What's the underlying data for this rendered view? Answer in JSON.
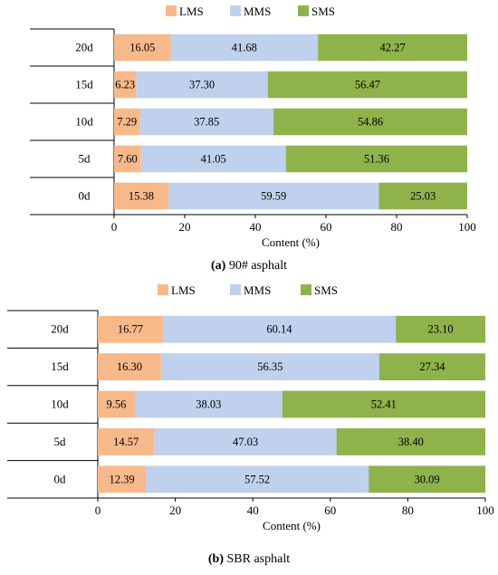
{
  "colors": {
    "LMS": "#f8b98a",
    "MMS": "#bfd1ec",
    "SMS": "#8fb24b"
  },
  "chart_data": [
    {
      "type": "bar",
      "orientation": "horizontal",
      "stacked": true,
      "categories": [
        "20d",
        "15d",
        "10d",
        "5d",
        "0d"
      ],
      "series": [
        {
          "name": "LMS",
          "values": [
            16.05,
            6.23,
            7.29,
            7.6,
            15.38
          ],
          "labels": [
            "16.05",
            "6.23",
            "7.29",
            "7.60",
            "15.38"
          ]
        },
        {
          "name": "MMS",
          "values": [
            41.68,
            37.3,
            37.85,
            41.05,
            59.59
          ],
          "labels": [
            "41.68",
            "37.30",
            "37.85",
            "41.05",
            "59.59"
          ]
        },
        {
          "name": "SMS",
          "values": [
            42.27,
            56.47,
            54.86,
            51.36,
            25.03
          ],
          "labels": [
            "42.27",
            "56.47",
            "54.86",
            "51.36",
            "25.03"
          ]
        }
      ],
      "xlabel": "Content (%)",
      "xlim": [
        0,
        100
      ],
      "xticks": [
        "0",
        "20",
        "40",
        "60",
        "80",
        "100"
      ],
      "legend": "top",
      "caption_letter": "(a)",
      "caption_text": " 90# asphalt"
    },
    {
      "type": "bar",
      "orientation": "horizontal",
      "stacked": true,
      "categories": [
        "20d",
        "15d",
        "10d",
        "5d",
        "0d"
      ],
      "series": [
        {
          "name": "LMS",
          "values": [
            16.77,
            16.3,
            9.56,
            14.57,
            12.39
          ],
          "labels": [
            "16.77",
            "16.30",
            "9.56",
            "14.57",
            "12.39"
          ]
        },
        {
          "name": "MMS",
          "values": [
            60.14,
            56.35,
            38.03,
            47.03,
            57.52
          ],
          "labels": [
            "60.14",
            "56.35",
            "38.03",
            "47.03",
            "57.52"
          ]
        },
        {
          "name": "SMS",
          "values": [
            23.1,
            27.34,
            52.41,
            38.4,
            30.09
          ],
          "labels": [
            "23.10",
            "27.34",
            "52.41",
            "38.40",
            "30.09"
          ]
        }
      ],
      "xlabel": "Content (%)",
      "xlim": [
        0,
        100
      ],
      "xticks": [
        "0",
        "20",
        "40",
        "60",
        "80",
        "100"
      ],
      "legend": "top",
      "caption_letter": "(b)",
      "caption_text": " SBR asphalt"
    }
  ]
}
